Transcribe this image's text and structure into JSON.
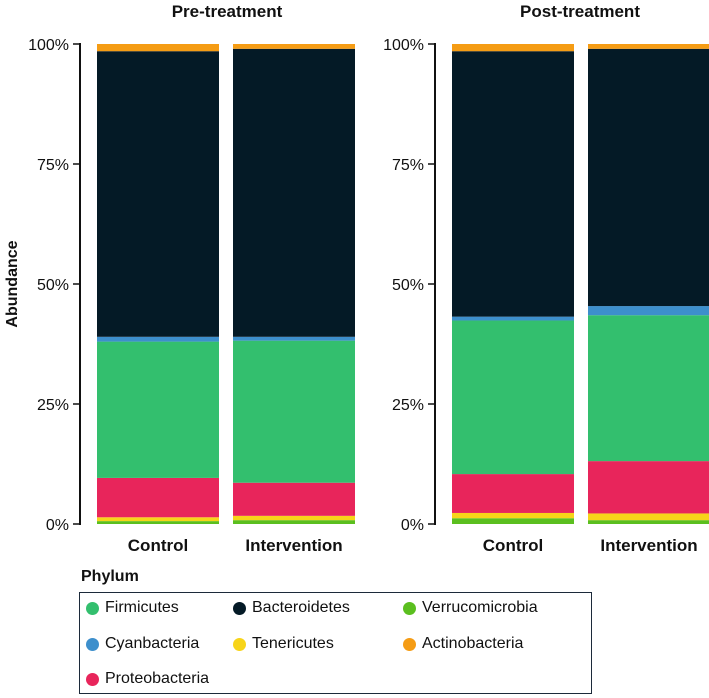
{
  "chart_data": [
    {
      "type": "stacked-bar",
      "title": "Pre-treatment",
      "ylabel": "Abundance",
      "ylim": [
        0,
        100
      ],
      "yticks": [
        "0%",
        "25%",
        "50%",
        "75%",
        "100%"
      ],
      "categories": [
        "Control",
        "Intervention"
      ],
      "series": [
        {
          "name": "Verrucomicrobia",
          "values": [
            0.6,
            0.8
          ]
        },
        {
          "name": "Tenericutes",
          "values": [
            0.8,
            0.9
          ]
        },
        {
          "name": "Proteobacteria",
          "values": [
            8.2,
            6.9
          ]
        },
        {
          "name": "Firmicutes",
          "values": [
            28.4,
            29.6
          ]
        },
        {
          "name": "Cyanbacteria",
          "values": [
            1.0,
            0.8
          ]
        },
        {
          "name": "Bacteroidetes",
          "values": [
            59.5,
            60.0
          ]
        },
        {
          "name": "Actinobacteria",
          "values": [
            1.5,
            1.0
          ]
        }
      ]
    },
    {
      "type": "stacked-bar",
      "title": "Post-treatment",
      "ylabel": "Abundance",
      "ylim": [
        0,
        100
      ],
      "yticks": [
        "0%",
        "25%",
        "50%",
        "75%",
        "100%"
      ],
      "categories": [
        "Control",
        "Intervention"
      ],
      "series": [
        {
          "name": "Verrucomicrobia",
          "values": [
            1.2,
            0.8
          ]
        },
        {
          "name": "Tenericutes",
          "values": [
            1.1,
            1.4
          ]
        },
        {
          "name": "Proteobacteria",
          "values": [
            8.1,
            10.9
          ]
        },
        {
          "name": "Firmicutes",
          "values": [
            32.0,
            30.4
          ]
        },
        {
          "name": "Cyanbacteria",
          "values": [
            0.8,
            1.9
          ]
        },
        {
          "name": "Bacteroidetes",
          "values": [
            55.3,
            53.6
          ]
        },
        {
          "name": "Actinobacteria",
          "values": [
            1.5,
            1.0
          ]
        }
      ]
    }
  ],
  "colors": {
    "Firmicutes": "#33bf6e",
    "Bacteroidetes": "#041a26",
    "Verrucomicrobia": "#5bbf1f",
    "Cyanbacteria": "#3d8fcc",
    "Tenericutes": "#f7d419",
    "Actinobacteria": "#f59c14",
    "Proteobacteria": "#e8255b"
  },
  "legend": {
    "title": "Phylum",
    "items": [
      {
        "label": "Firmicutes",
        "color": "#33bf6e"
      },
      {
        "label": "Bacteroidetes",
        "color": "#041a26"
      },
      {
        "label": "Verrucomicrobia",
        "color": "#5bbf1f"
      },
      {
        "label": "Cyanbacteria",
        "color": "#3d8fcc"
      },
      {
        "label": "Tenericutes",
        "color": "#f7d419"
      },
      {
        "label": "Actinobacteria",
        "color": "#f59c14"
      },
      {
        "label": "Proteobacteria",
        "color": "#e8255b"
      }
    ]
  }
}
